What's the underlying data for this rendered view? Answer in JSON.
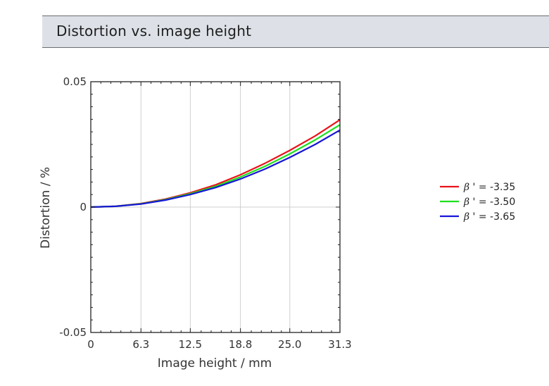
{
  "header": {
    "title": "Distortion vs. image height"
  },
  "chart_data": {
    "type": "line",
    "title": "Distortion vs. image height",
    "xlabel": "Image height / mm",
    "ylabel": "Distortion / %",
    "xlim": [
      0,
      31.3
    ],
    "ylim": [
      -0.05,
      0.05
    ],
    "x_ticks": [
      0,
      6.3,
      12.5,
      18.8,
      25.0,
      31.3
    ],
    "x_tick_labels": [
      "0",
      "6.3",
      "12.5",
      "18.8",
      "25.0",
      "31.3"
    ],
    "y_ticks": [
      -0.05,
      0,
      0.05
    ],
    "y_tick_labels": [
      "-0.05",
      "0",
      "0.05"
    ],
    "grid": true,
    "legend_position": "right",
    "x": [
      0,
      3.1,
      6.3,
      9.4,
      12.5,
      15.7,
      18.8,
      21.9,
      25.0,
      28.2,
      31.3
    ],
    "series": [
      {
        "name": "β ' = -3.35",
        "symbol": "β",
        "value_text": " ' = -3.35",
        "color": "#e8141b",
        "values": [
          0,
          0.0003,
          0.0014,
          0.0032,
          0.0057,
          0.0089,
          0.0129,
          0.0175,
          0.0226,
          0.0284,
          0.0348
        ]
      },
      {
        "name": "β ' = -3.50",
        "symbol": "β",
        "value_text": " ' = -3.50",
        "color": "#1de01d",
        "values": [
          0,
          0.0003,
          0.0013,
          0.003,
          0.0053,
          0.0083,
          0.012,
          0.0163,
          0.0212,
          0.0268,
          0.0328
        ]
      },
      {
        "name": "β ' = -3.65",
        "symbol": "β",
        "value_text": " ' = -3.65",
        "color": "#1616d6",
        "values": [
          0,
          0.0003,
          0.0012,
          0.0028,
          0.005,
          0.0078,
          0.0112,
          0.0152,
          0.0198,
          0.025,
          0.0307
        ]
      }
    ]
  }
}
